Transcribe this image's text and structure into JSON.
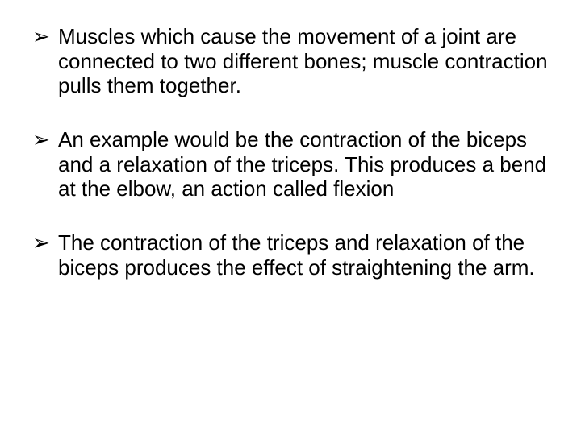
{
  "slide": {
    "background_color": "#ffffff",
    "text_color": "#000000",
    "font_family": "Arial",
    "font_size_pt": 20,
    "bullet_marker": "➢",
    "bullets": [
      {
        "text": "Muscles which cause the movement of a joint are connected to two different bones; muscle contraction pulls them together."
      },
      {
        "text": "An example would be the contraction of the biceps and a relaxation of the triceps. This produces a bend at the elbow, an action called flexion"
      },
      {
        "text": "The contraction of the triceps and relaxation of the biceps produces the effect of straightening the arm."
      }
    ]
  }
}
